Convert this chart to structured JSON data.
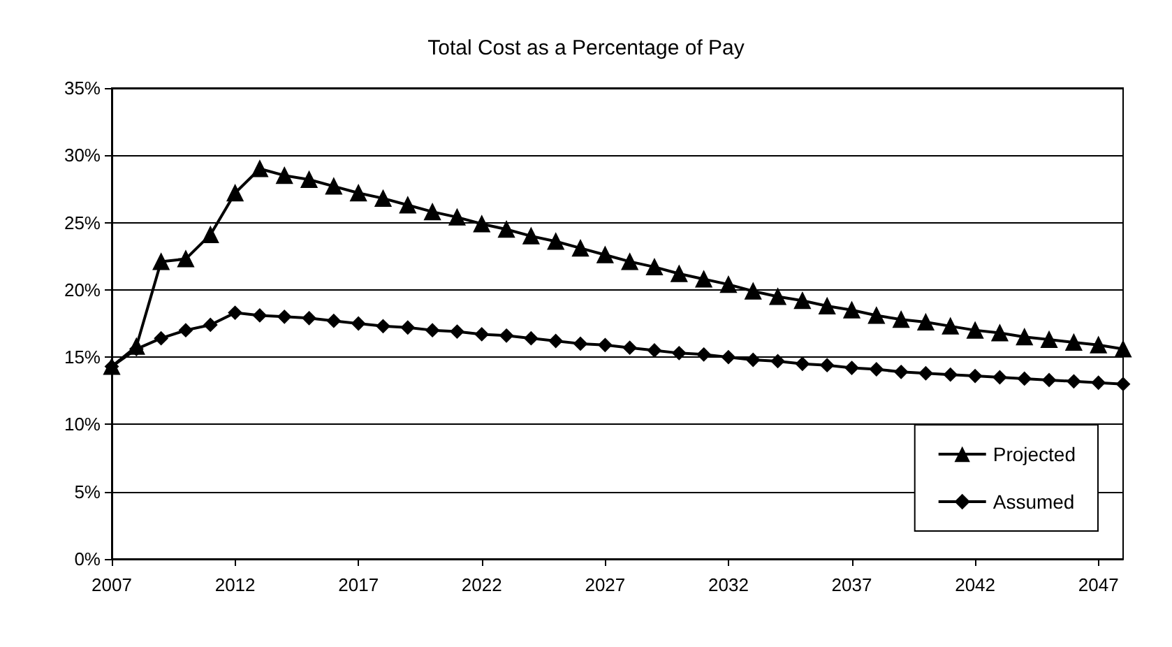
{
  "chart_data": {
    "type": "line",
    "title": "Total Cost as a Percentage of Pay",
    "x": [
      2007,
      2008,
      2009,
      2010,
      2011,
      2012,
      2013,
      2014,
      2015,
      2016,
      2017,
      2018,
      2019,
      2020,
      2021,
      2022,
      2023,
      2024,
      2025,
      2026,
      2027,
      2028,
      2029,
      2030,
      2031,
      2032,
      2033,
      2034,
      2035,
      2036,
      2037,
      2038,
      2039,
      2040,
      2041,
      2042,
      2043,
      2044,
      2045,
      2046,
      2047,
      2048
    ],
    "series": [
      {
        "name": "Projected",
        "color": "#000000",
        "marker": "triangle",
        "values": [
          14.3,
          15.8,
          22.1,
          22.3,
          24.1,
          27.2,
          29.0,
          28.5,
          28.2,
          27.7,
          27.2,
          26.8,
          26.3,
          25.8,
          25.4,
          24.9,
          24.5,
          24.0,
          23.6,
          23.1,
          22.6,
          22.1,
          21.7,
          21.2,
          20.8,
          20.4,
          19.9,
          19.5,
          19.2,
          18.8,
          18.5,
          18.1,
          17.8,
          17.6,
          17.3,
          17.0,
          16.8,
          16.5,
          16.3,
          16.1,
          15.9,
          15.6
        ]
      },
      {
        "name": "Assumed",
        "color": "#000000",
        "marker": "diamond",
        "values": [
          14.3,
          15.6,
          16.4,
          17.0,
          17.4,
          18.3,
          18.1,
          18.0,
          17.9,
          17.7,
          17.5,
          17.3,
          17.2,
          17.0,
          16.9,
          16.7,
          16.6,
          16.4,
          16.2,
          16.0,
          15.9,
          15.7,
          15.5,
          15.3,
          15.2,
          15.0,
          14.8,
          14.7,
          14.5,
          14.4,
          14.2,
          14.1,
          13.9,
          13.8,
          13.7,
          13.6,
          13.5,
          13.4,
          13.3,
          13.2,
          13.1,
          13.0
        ]
      }
    ],
    "xlim": [
      2007,
      2048
    ],
    "xticks": [
      2007,
      2012,
      2017,
      2022,
      2027,
      2032,
      2037,
      2042,
      2047
    ],
    "ylim": [
      0,
      35
    ],
    "yticks": [
      {
        "value": 0,
        "label": "0%"
      },
      {
        "value": 5,
        "label": "5%"
      },
      {
        "value": 10,
        "label": "10%"
      },
      {
        "value": 15,
        "label": "15%"
      },
      {
        "value": 20,
        "label": "20%"
      },
      {
        "value": 25,
        "label": "25%"
      },
      {
        "value": 30,
        "label": "30%"
      },
      {
        "value": 35,
        "label": "35%"
      }
    ],
    "grid": "y",
    "legend": "bottom right",
    "line_style": "solid"
  }
}
